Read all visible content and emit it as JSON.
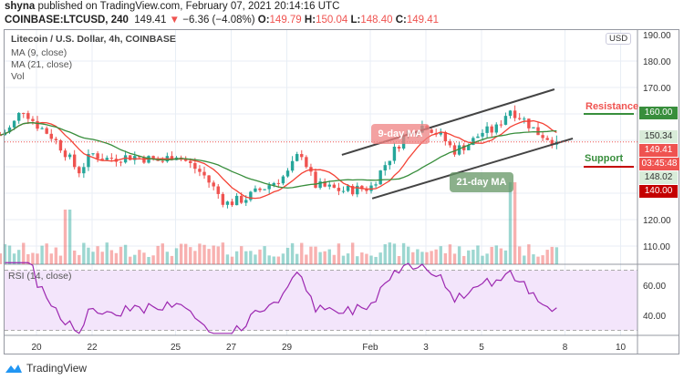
{
  "header": {
    "author": "shyna",
    "published_text": "published on TradingView.com, February 07, 2021 20:14:16 UTC",
    "symbol": "COINBASE:LTCUSD, 240",
    "last": "149.41",
    "change": "−6.36 (−4.08%)",
    "o_label": "O:",
    "o": "149.79",
    "h_label": "H:",
    "h": "150.04",
    "l_label": "L:",
    "l": "148.40",
    "c_label": "C:",
    "c": "149.41"
  },
  "legend": {
    "title": "Litecoin / U.S. Dollar, 4h, COINBASE",
    "ma9": "MA (9, close)",
    "ma21": "MA (21, close)",
    "vol": "Vol",
    "rsi": "RSI (14, close)"
  },
  "price_axis": {
    "currency": "USD",
    "ticks": [
      "190.00",
      "180.00",
      "170.00",
      "120.00",
      "110.00"
    ],
    "badges": {
      "resistance": "160.00",
      "ma21": "150.34",
      "last": "149.41",
      "countdown": "03:45:48",
      "ma9": "148.02",
      "support": "140.00"
    }
  },
  "rsi_axis": {
    "ticks": [
      "60.00",
      "40.00"
    ]
  },
  "time_axis": {
    "ticks": [
      "20",
      "22",
      "25",
      "27",
      "29",
      "Feb",
      "3",
      "5",
      "8",
      "10"
    ]
  },
  "annotations": {
    "resistance": "Resistance",
    "support": "Support",
    "ma9": "9-day MA",
    "ma21": "21-day MA"
  },
  "colors": {
    "up": "#26a69a",
    "down": "#ef5350",
    "ma9": "#f44336",
    "ma21": "#388e3c",
    "rsi": "#9c27b0",
    "resistance": "#388e3c",
    "support": "#c40000"
  },
  "chart_data": {
    "type": "candlestick",
    "interval": "4h",
    "y_range": [
      105,
      190
    ],
    "close_approx": [
      [
        18.7,
        152
      ],
      [
        19.1,
        155
      ],
      [
        19.5,
        162
      ],
      [
        20,
        156
      ],
      [
        20.5,
        152
      ],
      [
        21,
        146
      ],
      [
        21.5,
        138
      ],
      [
        22,
        145
      ],
      [
        22.5,
        143
      ],
      [
        23.5,
        144
      ],
      [
        24.5,
        142
      ],
      [
        25,
        145
      ],
      [
        26,
        137
      ],
      [
        26.8,
        126
      ],
      [
        27.5,
        128
      ],
      [
        28,
        131
      ],
      [
        29,
        137
      ],
      [
        29.5,
        146
      ],
      [
        30,
        133
      ],
      [
        31,
        131
      ],
      [
        32,
        132
      ],
      [
        32.6,
        142
      ],
      [
        33.3,
        153
      ],
      [
        34,
        156
      ],
      [
        34.6,
        151
      ],
      [
        35,
        146
      ],
      [
        35.6,
        149
      ],
      [
        36,
        153
      ],
      [
        36.5,
        154
      ],
      [
        37,
        162
      ],
      [
        37.5,
        158
      ],
      [
        38,
        153
      ],
      [
        38.7,
        149.41
      ]
    ],
    "channel_upper": [
      [
        30.98,
        144.5
      ],
      [
        38.62,
        169.3
      ]
    ],
    "channel_lower": [
      [
        32.07,
        128
      ],
      [
        39.28,
        150.7
      ]
    ],
    "resistance": 160,
    "support": 140,
    "rsi_bands": [
      30,
      70
    ]
  },
  "branding": {
    "name": "TradingView"
  }
}
